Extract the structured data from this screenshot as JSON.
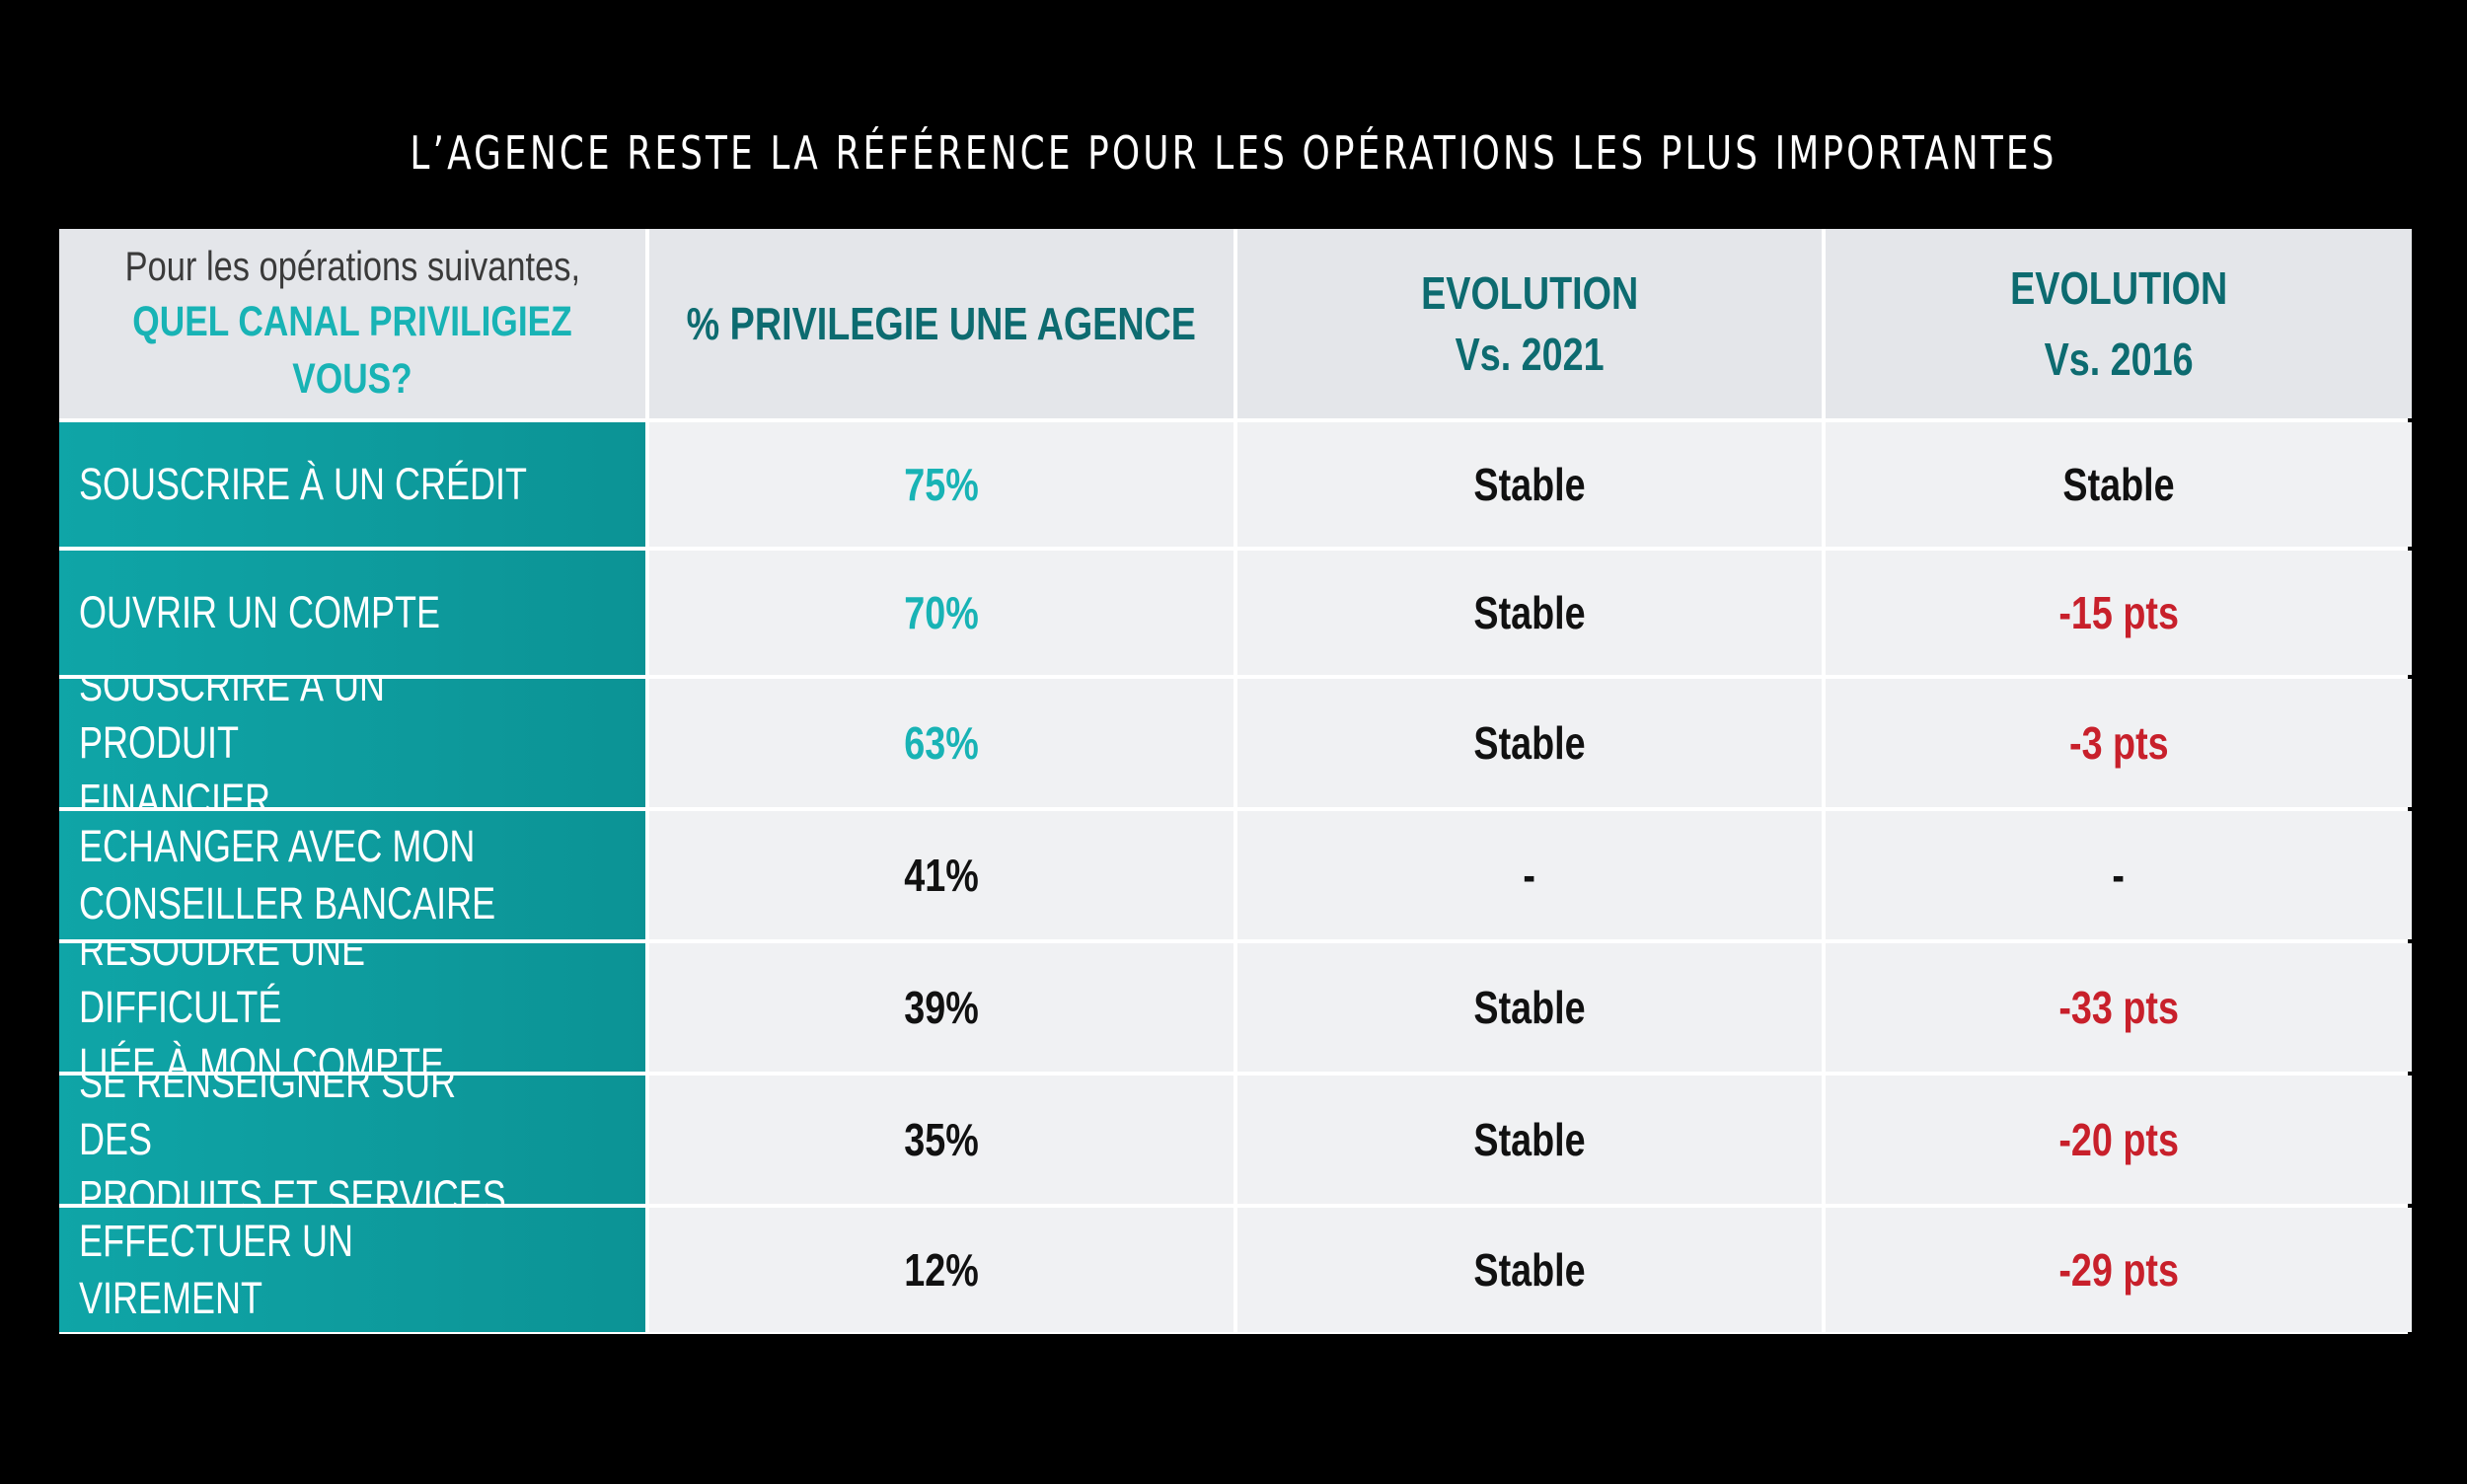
{
  "title": "L’AGENCE RESTE LA RÉFÉRENCE POUR LES OPÉRATIONS LES PLUS IMPORTANTES",
  "colors": {
    "teal_text": "#18b3b5",
    "row_label_bg": "#0fa5a7",
    "header_text": "#0d6b70",
    "negative": "#c8202b",
    "neutral": "#111111"
  },
  "chart_data": {
    "type": "table",
    "corner": {
      "line1": "Pour les opérations suivantes,",
      "line2": "QUEL CANAL PRIVILIGIEZ VOUS?"
    },
    "columns": [
      "% PRIVILEGIE UNE AGENCE",
      "EVOLUTION Vs. 2021",
      "EVOLUTION Vs. 2016"
    ],
    "headers": {
      "pct": "% PRIVILEGIE UNE AGENCE",
      "evo2021_l1": "EVOLUTION",
      "evo2021_l2": "Vs. 2021",
      "evo2016_l1": "EVOLUTION",
      "evo2016_l2": "Vs. 2016"
    },
    "rows": [
      {
        "label": "SOUSCRIRE À UN CRÉDIT",
        "pct": "75%",
        "value": 75,
        "evo2021": "Stable",
        "evo2016": "Stable"
      },
      {
        "label": "OUVRIR UN COMPTE",
        "pct": "70%",
        "value": 70,
        "evo2021": "Stable",
        "evo2016": "-15 pts"
      },
      {
        "label": "SOUSCRIRE À UN PRODUIT\nFINANCIER",
        "pct": "63%",
        "value": 63,
        "evo2021": "Stable",
        "evo2016": "-3 pts"
      },
      {
        "label": "ECHANGER AVEC MON\nCONSEILLER BANCAIRE",
        "pct": "41%",
        "value": 41,
        "evo2021": "-",
        "evo2016": "-"
      },
      {
        "label": "RÉSOUDRE UNE DIFFICULTÉ\nLIÉE À MON COMPTE",
        "pct": "39%",
        "value": 39,
        "evo2021": "Stable",
        "evo2016": "-33 pts"
      },
      {
        "label": "SE RENSEIGNER SUR DES\nPRODUITS ET SERVICES",
        "pct": "35%",
        "value": 35,
        "evo2021": "Stable",
        "evo2016": "-20 pts"
      },
      {
        "label": "EFFECTUER UN VIREMENT",
        "pct": "12%",
        "value": 12,
        "evo2021": "Stable",
        "evo2016": "-29 pts"
      }
    ]
  }
}
